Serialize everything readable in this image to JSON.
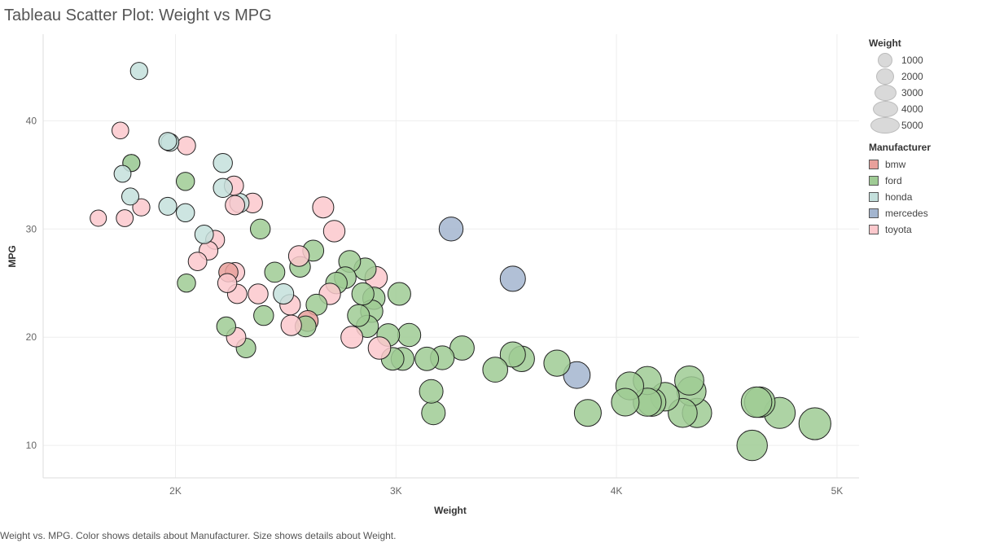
{
  "title": "Tableau Scatter Plot: Weight vs MPG",
  "caption": "Weight vs. MPG.  Color shows details about Manufacturer.  Size shows details about Weight.",
  "legend": {
    "size_title": "Weight",
    "size_items": [
      "1000",
      "2000",
      "3000",
      "4000",
      "5000"
    ],
    "color_title": "Manufacturer",
    "color_items": [
      {
        "label": "bmw",
        "color": "#e8a09b"
      },
      {
        "label": "ford",
        "color": "#9fcb94"
      },
      {
        "label": "honda",
        "color": "#c4e0dc"
      },
      {
        "label": "mercedes",
        "color": "#a3b5cf"
      },
      {
        "label": "toyota",
        "color": "#fcc8cc"
      }
    ]
  },
  "chart_data": {
    "type": "scatter",
    "title": "Tableau Scatter Plot: Weight vs MPG",
    "xlabel": "Weight",
    "ylabel": "MPG",
    "xlim": [
      1400,
      5100
    ],
    "ylim": [
      7,
      48
    ],
    "x_ticks": [
      2000,
      3000,
      4000,
      5000
    ],
    "x_tick_labels": [
      "2K",
      "3K",
      "4K",
      "5K"
    ],
    "y_ticks": [
      10,
      20,
      30,
      40
    ],
    "grid": true,
    "legend_position": "right",
    "series": [
      {
        "name": "honda",
        "color": "#c4e0dc",
        "points": [
          [
            1835,
            44.6
          ],
          [
            1760,
            35.1
          ],
          [
            1795,
            33.0
          ],
          [
            1965,
            32.1
          ],
          [
            2045,
            31.5
          ],
          [
            1965,
            38.1
          ],
          [
            1975,
            38.0
          ],
          [
            2215,
            36.1
          ],
          [
            2215,
            33.8
          ],
          [
            2290,
            32.4
          ],
          [
            2130,
            29.5
          ],
          [
            2490,
            24.0
          ],
          [
            1800,
            36.1
          ]
        ]
      },
      {
        "name": "toyota",
        "color": "#fcc8cc",
        "points": [
          [
            1750,
            39.1
          ],
          [
            2050,
            37.7
          ],
          [
            1845,
            32.0
          ],
          [
            1650,
            31.0
          ],
          [
            1770,
            31.0
          ],
          [
            2265,
            34.0
          ],
          [
            2270,
            32.2
          ],
          [
            2350,
            32.4
          ],
          [
            2670,
            32.0
          ],
          [
            2720,
            29.8
          ],
          [
            2180,
            29.0
          ],
          [
            2150,
            28.0
          ],
          [
            2100,
            27.0
          ],
          [
            2235,
            25.0
          ],
          [
            2270,
            26.0
          ],
          [
            2280,
            24.0
          ],
          [
            2375,
            24.0
          ],
          [
            2520,
            23.0
          ],
          [
            2275,
            20.0
          ],
          [
            2525,
            21.1
          ],
          [
            2560,
            27.5
          ],
          [
            2700,
            24.0
          ],
          [
            2910,
            25.5
          ],
          [
            2800,
            20.0
          ],
          [
            2925,
            19.0
          ]
        ]
      },
      {
        "name": "bmw",
        "color": "#e8a09b",
        "points": [
          [
            2240,
            26.0
          ],
          [
            2600,
            21.5
          ]
        ]
      },
      {
        "name": "ford",
        "color": "#9fcb94",
        "points": [
          [
            1800,
            36.1
          ],
          [
            2045,
            34.4
          ],
          [
            2050,
            25.0
          ],
          [
            2385,
            30.0
          ],
          [
            2230,
            21.0
          ],
          [
            2320,
            19.0
          ],
          [
            2400,
            22.0
          ],
          [
            2450,
            26.0
          ],
          [
            2565,
            26.5
          ],
          [
            2625,
            28.0
          ],
          [
            2590,
            21.0
          ],
          [
            2640,
            23.0
          ],
          [
            2730,
            25.0
          ],
          [
            2770,
            25.5
          ],
          [
            2790,
            27.0
          ],
          [
            2860,
            26.3
          ],
          [
            2850,
            24.0
          ],
          [
            2830,
            22.0
          ],
          [
            2890,
            22.4
          ],
          [
            2900,
            23.6
          ],
          [
            2870,
            21.0
          ],
          [
            2965,
            20.2
          ],
          [
            2985,
            18.0
          ],
          [
            3015,
            24.0
          ],
          [
            3030,
            18.0
          ],
          [
            3060,
            20.2
          ],
          [
            3140,
            18.0
          ],
          [
            3160,
            15.0
          ],
          [
            3170,
            13.0
          ],
          [
            3210,
            18.1
          ],
          [
            3300,
            19.0
          ],
          [
            3450,
            17.0
          ],
          [
            3530,
            18.4
          ],
          [
            3570,
            18.0
          ],
          [
            3730,
            17.6
          ],
          [
            3870,
            13.0
          ],
          [
            4040,
            14.0
          ],
          [
            4060,
            15.5
          ],
          [
            4140,
            16.0
          ],
          [
            4140,
            14.0
          ],
          [
            4160,
            14.0
          ],
          [
            4220,
            14.5
          ],
          [
            4300,
            13.0
          ],
          [
            4330,
            16.0
          ],
          [
            4340,
            15.0
          ],
          [
            4365,
            13.0
          ],
          [
            4615,
            10.0
          ],
          [
            4635,
            14.0
          ],
          [
            4650,
            14.0
          ],
          [
            4740,
            13.0
          ],
          [
            4900,
            12.0
          ]
        ]
      },
      {
        "name": "mercedes",
        "color": "#a3b5cf",
        "points": [
          [
            3250,
            30.0
          ],
          [
            3530,
            25.4
          ],
          [
            3820,
            16.5
          ]
        ]
      }
    ]
  }
}
